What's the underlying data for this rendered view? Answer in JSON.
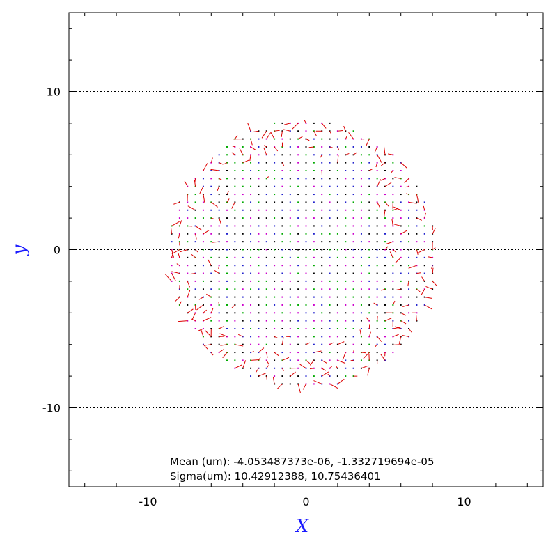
{
  "chart_data": {
    "type": "scatter",
    "title": "",
    "xlabel": "X",
    "ylabel": "y",
    "xlim": [
      -15,
      15
    ],
    "ylim": [
      -15,
      15
    ],
    "xticks": [
      -10,
      0,
      10
    ],
    "yticks": [
      -10,
      0,
      10
    ],
    "x_tick_labels": [
      "-10",
      "0",
      "10"
    ],
    "y_tick_labels": [
      "-10",
      "0",
      "10"
    ],
    "grid": true,
    "grid_style": "dotted",
    "annotations": {
      "mean": "Mean (um): -4.053487373e-06, -1.332719694e-05",
      "sigma": "Sigma(um): 10.42912388, 10.75436401"
    },
    "field": {
      "description_units": "data units",
      "disk_center": [
        -0.2,
        -0.3
      ],
      "disk_radius": 8.5,
      "grid_spacing": 0.5,
      "vector_color": "#dd0000",
      "marker_colors": [
        "#000000",
        "#00aa00",
        "#cc00cc",
        "#2222cc"
      ]
    },
    "colors": {
      "axis_label": "#1a1aff",
      "frame": "#000000",
      "grid": "#000000",
      "vectors": "#dd0000"
    }
  }
}
